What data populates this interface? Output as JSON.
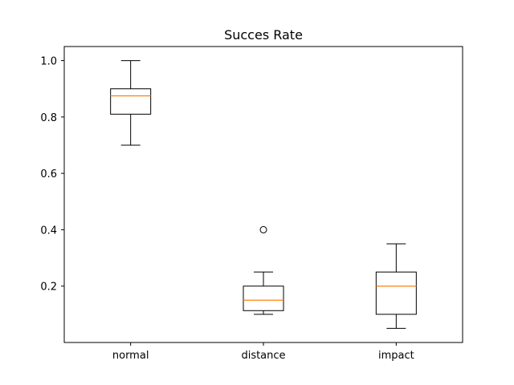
{
  "chart_data": {
    "type": "box",
    "title": "Succes Rate",
    "xlabel": "",
    "ylabel": "",
    "categories": [
      "normal",
      "distance",
      "impact"
    ],
    "ylim": [
      0.0,
      1.05
    ],
    "yticks": [
      0.2,
      0.4,
      0.6,
      0.8,
      1.0
    ],
    "ytick_labels": [
      "0.2",
      "0.4",
      "0.6",
      "0.8",
      "1.0"
    ],
    "grid": false,
    "colors": {
      "box": "#000000",
      "median": "#ff7f0e"
    },
    "boxes": [
      {
        "name": "normal",
        "whisker_low": 0.7,
        "q1": 0.81,
        "median": 0.875,
        "q3": 0.9,
        "whisker_high": 1.0,
        "outliers": []
      },
      {
        "name": "distance",
        "whisker_low": 0.1,
        "q1": 0.113,
        "median": 0.15,
        "q3": 0.2,
        "whisker_high": 0.25,
        "outliers": [
          0.4
        ]
      },
      {
        "name": "impact",
        "whisker_low": 0.05,
        "q1": 0.1,
        "median": 0.2,
        "q3": 0.25,
        "whisker_high": 0.35,
        "outliers": []
      }
    ]
  }
}
